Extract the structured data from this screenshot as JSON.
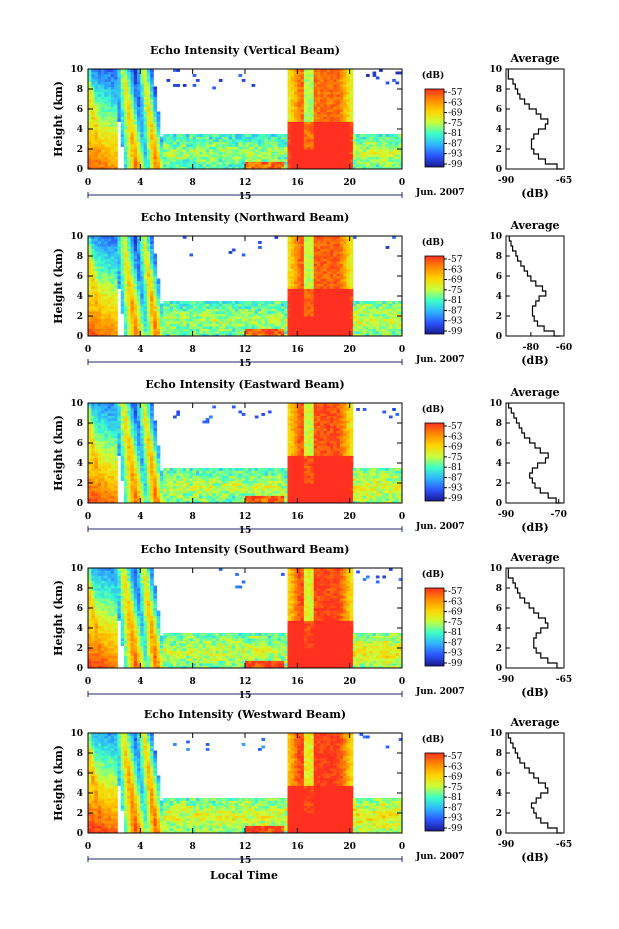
{
  "figure": {
    "shared_xlabel": "Local Time",
    "day_label": "15",
    "date_label": "Jun. 2007",
    "colorbar_unit": "(dB)",
    "colorbar_ticks": [
      "-57",
      "-63",
      "-69",
      "-75",
      "-81",
      "-87",
      "-93",
      "-99"
    ],
    "colorbar_colors": [
      "#ff3020",
      "#ff8a00",
      "#ffd200",
      "#c8ff3c",
      "#3cffc8",
      "#30b4ff",
      "#2a55ff",
      "#1a1a90"
    ],
    "avg_title": "Average",
    "avg_xlabel": "(dB)"
  },
  "chart_data": [
    {
      "type": "heatmap",
      "title": "Echo Intensity (Vertical Beam)",
      "ylabel": "Height (km)",
      "xlim": [
        0,
        24
      ],
      "ylim": [
        0,
        10
      ],
      "xticks": [
        "0",
        "4",
        "8",
        "12",
        "16",
        "20",
        "0"
      ],
      "yticks": [
        "0",
        "2",
        "4",
        "6",
        "8",
        "10"
      ],
      "clim": [
        -99,
        -57
      ],
      "average": {
        "xlim": [
          -90,
          -65
        ],
        "xticks": [
          "-90",
          "-65"
        ],
        "profile": [
          [
            0,
            -66
          ],
          [
            0.5,
            -68
          ],
          [
            1,
            -73
          ],
          [
            1.5,
            -76
          ],
          [
            2,
            -78
          ],
          [
            2.5,
            -79
          ],
          [
            3,
            -79
          ],
          [
            3.5,
            -78
          ],
          [
            4,
            -76
          ],
          [
            4.5,
            -73
          ],
          [
            5,
            -72
          ],
          [
            5.5,
            -75
          ],
          [
            6,
            -77
          ],
          [
            6.5,
            -80
          ],
          [
            7,
            -82
          ],
          [
            7.5,
            -84
          ],
          [
            8,
            -85
          ],
          [
            8.5,
            -86
          ],
          [
            9,
            -87
          ],
          [
            9.5,
            -89
          ],
          [
            10,
            -89
          ]
        ]
      }
    },
    {
      "type": "heatmap",
      "title": "Echo Intensity (Northward Beam)",
      "ylabel": "Height (km)",
      "xlim": [
        0,
        24
      ],
      "ylim": [
        0,
        10
      ],
      "xticks": [
        "0",
        "4",
        "8",
        "12",
        "16",
        "20",
        "0"
      ],
      "yticks": [
        "0",
        "2",
        "4",
        "6",
        "8",
        "10"
      ],
      "clim": [
        -99,
        -57
      ],
      "average": {
        "xlim": [
          -95,
          -60
        ],
        "xticks": [
          "-80",
          "-60"
        ],
        "profile": [
          [
            0,
            -62
          ],
          [
            0.5,
            -66
          ],
          [
            1,
            -72
          ],
          [
            1.5,
            -76
          ],
          [
            2,
            -78
          ],
          [
            2.5,
            -79
          ],
          [
            3,
            -79
          ],
          [
            3.5,
            -77
          ],
          [
            4,
            -75
          ],
          [
            4.5,
            -71
          ],
          [
            5,
            -73
          ],
          [
            5.5,
            -77
          ],
          [
            6,
            -80
          ],
          [
            6.5,
            -82
          ],
          [
            7,
            -84
          ],
          [
            7.5,
            -86
          ],
          [
            8,
            -88
          ],
          [
            8.5,
            -89
          ],
          [
            9,
            -91
          ],
          [
            9.5,
            -92
          ],
          [
            10,
            -93
          ]
        ]
      }
    },
    {
      "type": "heatmap",
      "title": "Echo Intensity (Eastward Beam)",
      "ylabel": "Height (km)",
      "xlim": [
        0,
        24
      ],
      "ylim": [
        0,
        10
      ],
      "xticks": [
        "0",
        "4",
        "8",
        "12",
        "16",
        "20",
        "0"
      ],
      "yticks": [
        "0",
        "2",
        "4",
        "6",
        "8",
        "10"
      ],
      "clim": [
        -99,
        -57
      ],
      "average": {
        "xlim": [
          -90,
          -68
        ],
        "xticks": [
          "-90",
          "-70"
        ],
        "profile": [
          [
            0,
            -69
          ],
          [
            0.5,
            -71
          ],
          [
            1,
            -74
          ],
          [
            1.5,
            -77
          ],
          [
            2,
            -79
          ],
          [
            2.5,
            -80
          ],
          [
            3,
            -81
          ],
          [
            3.5,
            -80
          ],
          [
            4,
            -78
          ],
          [
            4.5,
            -75
          ],
          [
            5,
            -74
          ],
          [
            5.5,
            -77
          ],
          [
            6,
            -79
          ],
          [
            6.5,
            -81
          ],
          [
            7,
            -83
          ],
          [
            7.5,
            -84
          ],
          [
            8,
            -85
          ],
          [
            8.5,
            -86
          ],
          [
            9,
            -87
          ],
          [
            9.5,
            -88
          ],
          [
            10,
            -89
          ]
        ]
      }
    },
    {
      "type": "heatmap",
      "title": "Echo Intensity (Southward Beam)",
      "ylabel": "Height (km)",
      "xlim": [
        0,
        24
      ],
      "ylim": [
        0,
        10
      ],
      "xticks": [
        "0",
        "4",
        "8",
        "12",
        "16",
        "20",
        "0"
      ],
      "yticks": [
        "0",
        "2",
        "4",
        "6",
        "8",
        "10"
      ],
      "clim": [
        -99,
        -57
      ],
      "average": {
        "xlim": [
          -90,
          -65
        ],
        "xticks": [
          "-90",
          "-65"
        ],
        "profile": [
          [
            0,
            -66
          ],
          [
            0.5,
            -68
          ],
          [
            1,
            -72
          ],
          [
            1.5,
            -75
          ],
          [
            2,
            -77
          ],
          [
            2.5,
            -78
          ],
          [
            3,
            -78
          ],
          [
            3.5,
            -77
          ],
          [
            4,
            -75
          ],
          [
            4.5,
            -72
          ],
          [
            5,
            -73
          ],
          [
            5.5,
            -76
          ],
          [
            6,
            -78
          ],
          [
            6.5,
            -80
          ],
          [
            7,
            -82
          ],
          [
            7.5,
            -84
          ],
          [
            8,
            -85
          ],
          [
            8.5,
            -86
          ],
          [
            9,
            -87
          ],
          [
            9.5,
            -89
          ],
          [
            10,
            -89
          ]
        ]
      }
    },
    {
      "type": "heatmap",
      "title": "Echo Intensity (Westward Beam)",
      "ylabel": "Height (km)",
      "xlim": [
        0,
        24
      ],
      "ylim": [
        0,
        10
      ],
      "xticks": [
        "0",
        "4",
        "8",
        "12",
        "16",
        "20",
        "0"
      ],
      "yticks": [
        "0",
        "2",
        "4",
        "6",
        "8",
        "10"
      ],
      "clim": [
        -99,
        -57
      ],
      "average": {
        "xlim": [
          -90,
          -65
        ],
        "xticks": [
          "-90",
          "-65"
        ],
        "profile": [
          [
            0,
            -66
          ],
          [
            0.5,
            -68
          ],
          [
            1,
            -72
          ],
          [
            1.5,
            -75
          ],
          [
            2,
            -77
          ],
          [
            2.5,
            -78
          ],
          [
            3,
            -79
          ],
          [
            3.5,
            -77
          ],
          [
            4,
            -75
          ],
          [
            4.5,
            -72
          ],
          [
            5,
            -73
          ],
          [
            5.5,
            -76
          ],
          [
            6,
            -78
          ],
          [
            6.5,
            -80
          ],
          [
            7,
            -82
          ],
          [
            7.5,
            -84
          ],
          [
            8,
            -85
          ],
          [
            8.5,
            -86
          ],
          [
            9,
            -87
          ],
          [
            9.5,
            -88
          ],
          [
            10,
            -89
          ]
        ]
      }
    }
  ]
}
